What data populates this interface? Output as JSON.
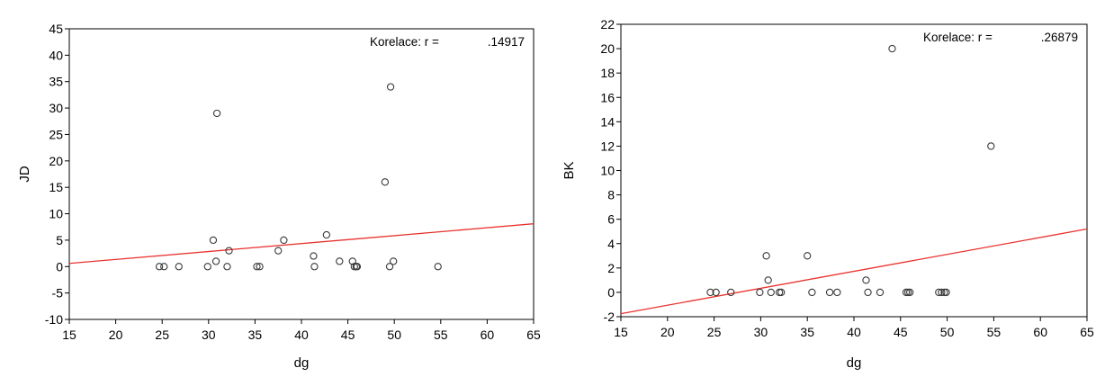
{
  "chart_data": [
    {
      "type": "scatter",
      "xlabel": "dg",
      "ylabel": "JD",
      "xlim": [
        15,
        65
      ],
      "ylim": [
        -10,
        45
      ],
      "xticks": [
        15,
        20,
        25,
        30,
        35,
        40,
        45,
        50,
        55,
        60,
        65
      ],
      "yticks": [
        -10,
        -5,
        0,
        5,
        10,
        15,
        20,
        25,
        30,
        35,
        40,
        45
      ],
      "grid": false,
      "annotation": {
        "label": "Korelace: r =",
        "value": ".14917"
      },
      "regression_line": {
        "color": "#e8322e",
        "points": [
          [
            15,
            0.6
          ],
          [
            65,
            8.1
          ]
        ]
      },
      "points": [
        [
          24.7,
          0
        ],
        [
          25.2,
          0
        ],
        [
          26.8,
          0
        ],
        [
          29.9,
          0
        ],
        [
          30.5,
          5
        ],
        [
          30.8,
          1
        ],
        [
          30.9,
          29
        ],
        [
          32.0,
          0
        ],
        [
          32.2,
          3
        ],
        [
          35.2,
          0
        ],
        [
          35.5,
          0
        ],
        [
          37.5,
          3
        ],
        [
          38.1,
          5
        ],
        [
          41.3,
          2
        ],
        [
          41.4,
          0
        ],
        [
          42.7,
          6
        ],
        [
          44.1,
          1
        ],
        [
          45.5,
          1
        ],
        [
          45.7,
          0
        ],
        [
          45.9,
          0
        ],
        [
          46.0,
          0
        ],
        [
          49.0,
          16
        ],
        [
          49.5,
          0
        ],
        [
          49.6,
          34
        ],
        [
          49.9,
          1
        ],
        [
          54.7,
          0
        ]
      ]
    },
    {
      "type": "scatter",
      "xlabel": "dg",
      "ylabel": "BK",
      "xlim": [
        15,
        65
      ],
      "ylim": [
        -2,
        22
      ],
      "xticks": [
        15,
        20,
        25,
        30,
        35,
        40,
        45,
        50,
        55,
        60,
        65
      ],
      "yticks": [
        -2,
        0,
        2,
        4,
        6,
        8,
        10,
        12,
        14,
        16,
        18,
        20,
        22
      ],
      "grid": false,
      "annotation": {
        "label": "Korelace: r =",
        "value": ".26879"
      },
      "regression_line": {
        "color": "#e8322e",
        "points": [
          [
            15,
            -1.75
          ],
          [
            65,
            5.2
          ]
        ]
      },
      "points": [
        [
          24.6,
          0
        ],
        [
          25.2,
          0
        ],
        [
          26.8,
          0
        ],
        [
          29.9,
          0
        ],
        [
          30.6,
          3
        ],
        [
          30.8,
          1
        ],
        [
          31.1,
          0
        ],
        [
          32.0,
          0
        ],
        [
          32.2,
          0
        ],
        [
          35.0,
          3
        ],
        [
          35.5,
          0
        ],
        [
          37.4,
          0
        ],
        [
          38.2,
          0
        ],
        [
          41.3,
          1
        ],
        [
          41.5,
          0
        ],
        [
          42.8,
          0
        ],
        [
          44.1,
          20
        ],
        [
          45.6,
          0
        ],
        [
          45.8,
          0
        ],
        [
          46.0,
          0
        ],
        [
          49.1,
          0
        ],
        [
          49.4,
          0
        ],
        [
          49.7,
          0
        ],
        [
          49.9,
          0
        ],
        [
          54.7,
          12
        ]
      ]
    }
  ]
}
